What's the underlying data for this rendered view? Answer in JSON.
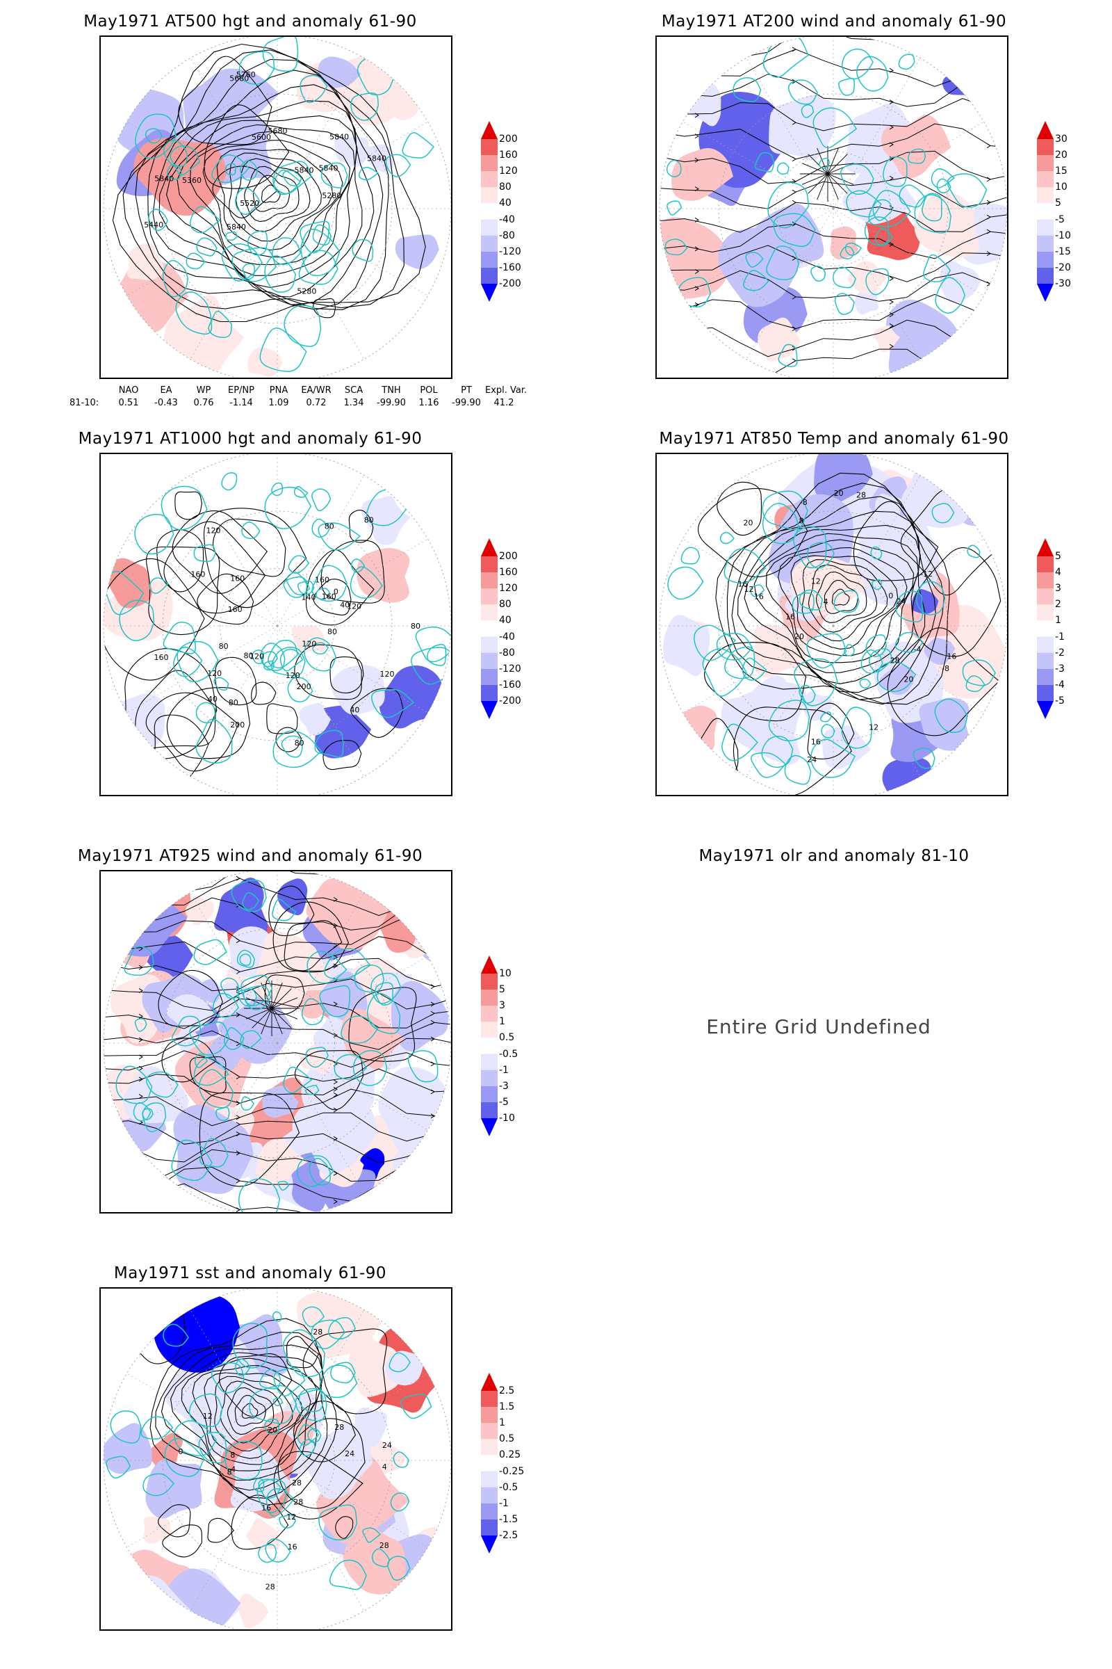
{
  "panels": [
    {
      "id": "z500",
      "title": "May1971 AT500 hgt and anomaly 61-90",
      "colorbar": [
        "200",
        "160",
        "120",
        "80",
        "40",
        "-40",
        "-80",
        "-120",
        "-160",
        "-200"
      ],
      "contour_labels": [
        "5840",
        "5840",
        "5840",
        "5840",
        "5840",
        "5680",
        "5280",
        "5280",
        "5360",
        "5440",
        "5520",
        "5600",
        "5680",
        "5760",
        "5840"
      ]
    },
    {
      "id": "u200",
      "title": "May1971 AT200 wind and anomaly 61-90",
      "colorbar": [
        "30",
        "20",
        "15",
        "10",
        "5",
        "-5",
        "-10",
        "-15",
        "-20",
        "-30"
      ]
    },
    {
      "id": "z1000",
      "title": "May1971 AT1000 hgt and anomaly 61-90",
      "colorbar": [
        "200",
        "160",
        "120",
        "80",
        "40",
        "-40",
        "-80",
        "-120",
        "-160",
        "-200"
      ],
      "contour_labels": [
        "120",
        "160",
        "160",
        "120",
        "200",
        "160",
        "140",
        "120",
        "120",
        "80",
        "40",
        "40",
        "80",
        "80",
        "120",
        "120",
        "0",
        "160",
        "40",
        "160",
        "200",
        "160",
        "120",
        "80",
        "80",
        "80",
        "80",
        "80"
      ]
    },
    {
      "id": "t850",
      "title": "May1971 AT850 Temp and anomaly 61-90",
      "colorbar": [
        "5",
        "4",
        "3",
        "2",
        "1",
        "-1",
        "-2",
        "-3",
        "-4",
        "-5"
      ],
      "contour_labels": [
        "16",
        "12",
        "8",
        "-8",
        "16",
        "-4",
        "-12",
        "12",
        "16",
        "20",
        "0",
        "-8",
        "24",
        "20",
        "4",
        "28",
        "16",
        "12",
        "24",
        "28",
        "20",
        "20",
        "16"
      ]
    },
    {
      "id": "u925",
      "title": "May1971 AT925 wind and anomaly 61-90",
      "colorbar": [
        "10",
        "5",
        "3",
        "1",
        "0.5",
        "-0.5",
        "-1",
        "-3",
        "-5",
        "-10"
      ]
    },
    {
      "id": "olr",
      "title": "May1971 olr and anomaly 81-10",
      "message": "Entire Grid Undefined"
    },
    {
      "id": "sst",
      "title": "May1971 sst and anomaly 61-90",
      "colorbar": [
        "2.5",
        "1.5",
        "1",
        "0.5",
        "0.25",
        "-0.25",
        "-0.5",
        "-1",
        "-1.5",
        "-2.5"
      ],
      "contour_labels": [
        "28",
        "28",
        "24",
        "24",
        "28",
        "20",
        "16",
        "12",
        "8",
        "4",
        "4",
        "0",
        "8",
        "12",
        "16",
        "28",
        "28",
        "28"
      ]
    }
  ],
  "teleconnections": {
    "headers": [
      "NAO",
      "EA",
      "WP",
      "EP/NP",
      "PNA",
      "EA/WR",
      "SCA",
      "TNH",
      "POL",
      "PT",
      "Expl. Var."
    ],
    "row_label": "81-10:",
    "values": [
      "0.51",
      "-0.43",
      "0.76",
      "-1.14",
      "1.09",
      "0.72",
      "1.34",
      "-99.90",
      "1.16",
      "-99.90",
      "41.2"
    ]
  },
  "colors": {
    "coast": "#1fc4c4",
    "contour": "#000000",
    "positive": [
      "#ffe8e8",
      "#fcc4c4",
      "#f79a9a",
      "#ef5a5a",
      "#e00000"
    ],
    "negative": [
      "#e6e6ff",
      "#c4c4fb",
      "#9a9af5",
      "#6161ec",
      "#0000ff"
    ]
  }
}
